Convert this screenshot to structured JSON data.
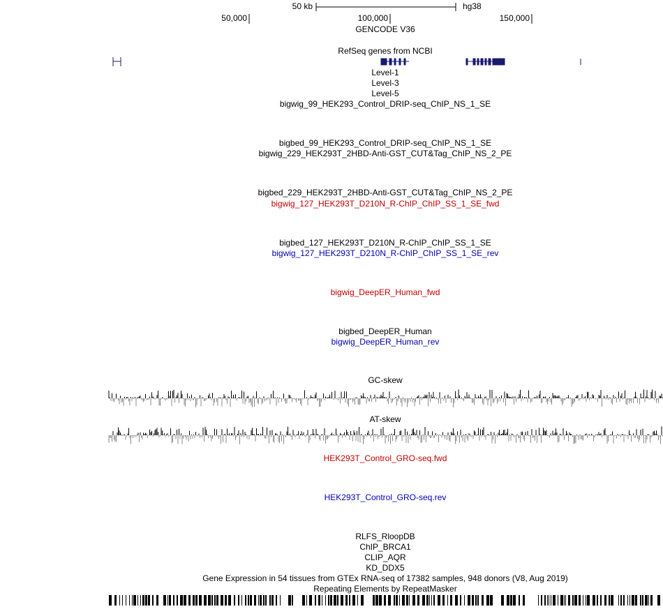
{
  "ruler": {
    "scale_label": "50 kb",
    "assembly": "hg38",
    "positions": [
      "50,000",
      "100,000",
      "150,000"
    ],
    "gene_set": "GENCODE V36"
  },
  "tracks": [
    {
      "label": "RefSeq genes from NCBI",
      "color": "#000000"
    },
    {
      "label": "Level-1",
      "color": "#000000"
    },
    {
      "label": "Level-3",
      "color": "#000000"
    },
    {
      "label": "Level-5",
      "color": "#000000"
    },
    {
      "label": "bigwig_99_HEK293_Control_DRIP-seq_ChIP_NS_1_SE",
      "color": "#000000"
    },
    {
      "label": "bigbed_99_HEK293_Control_DRIP-seq_ChIP_NS_1_SE",
      "color": "#000000"
    },
    {
      "label": "bigwig_229_HEK293T_2HBD-Anti-GST_CUT&Tag_ChIP_NS_2_PE",
      "color": "#000000"
    },
    {
      "label": "bigbed_229_HEK293T_2HBD-Anti-GST_CUT&Tag_ChIP_NS_2_PE",
      "color": "#000000"
    },
    {
      "label": "bigwig_127_HEK293T_D210N_R-ChIP_ChIP_SS_1_SE_fwd",
      "color": "#c00000"
    },
    {
      "label": "bigbed_127_HEK293T_D210N_R-ChIP_ChIP_SS_1_SE",
      "color": "#000000"
    },
    {
      "label": "bigwig_127_HEK293T_D210N_R-ChIP_ChIP_SS_1_SE_rev",
      "color": "#0000b0"
    },
    {
      "label": "bigwig_DeepER_Human_fwd",
      "color": "#c00000"
    },
    {
      "label": "bigbed_DeepER_Human",
      "color": "#000000"
    },
    {
      "label": "bigwig_DeepER_Human_rev",
      "color": "#0000b0"
    },
    {
      "label": "GC-skew",
      "color": "#000000"
    },
    {
      "label": "AT-skew",
      "color": "#000000"
    },
    {
      "label": "HEK293T_Control_GRO-seq.fwd",
      "color": "#c00000"
    },
    {
      "label": "HEK293T_Control_GRO-seq.rev",
      "color": "#0000b0"
    },
    {
      "label": "RLFS_RloopDB",
      "color": "#000000"
    },
    {
      "label": "ChIP_BRCA1",
      "color": "#000000"
    },
    {
      "label": "CLIP_AQR",
      "color": "#000000"
    },
    {
      "label": "KD_DDX5",
      "color": "#000000"
    },
    {
      "label": "Gene Expression in 54 tissues from GTEx RNA-seq of 17382 samples, 948 donors (V8, Aug 2019)",
      "color": "#000000"
    },
    {
      "label": "Repeating Elements by RepeatMasker",
      "color": "#000000"
    }
  ]
}
